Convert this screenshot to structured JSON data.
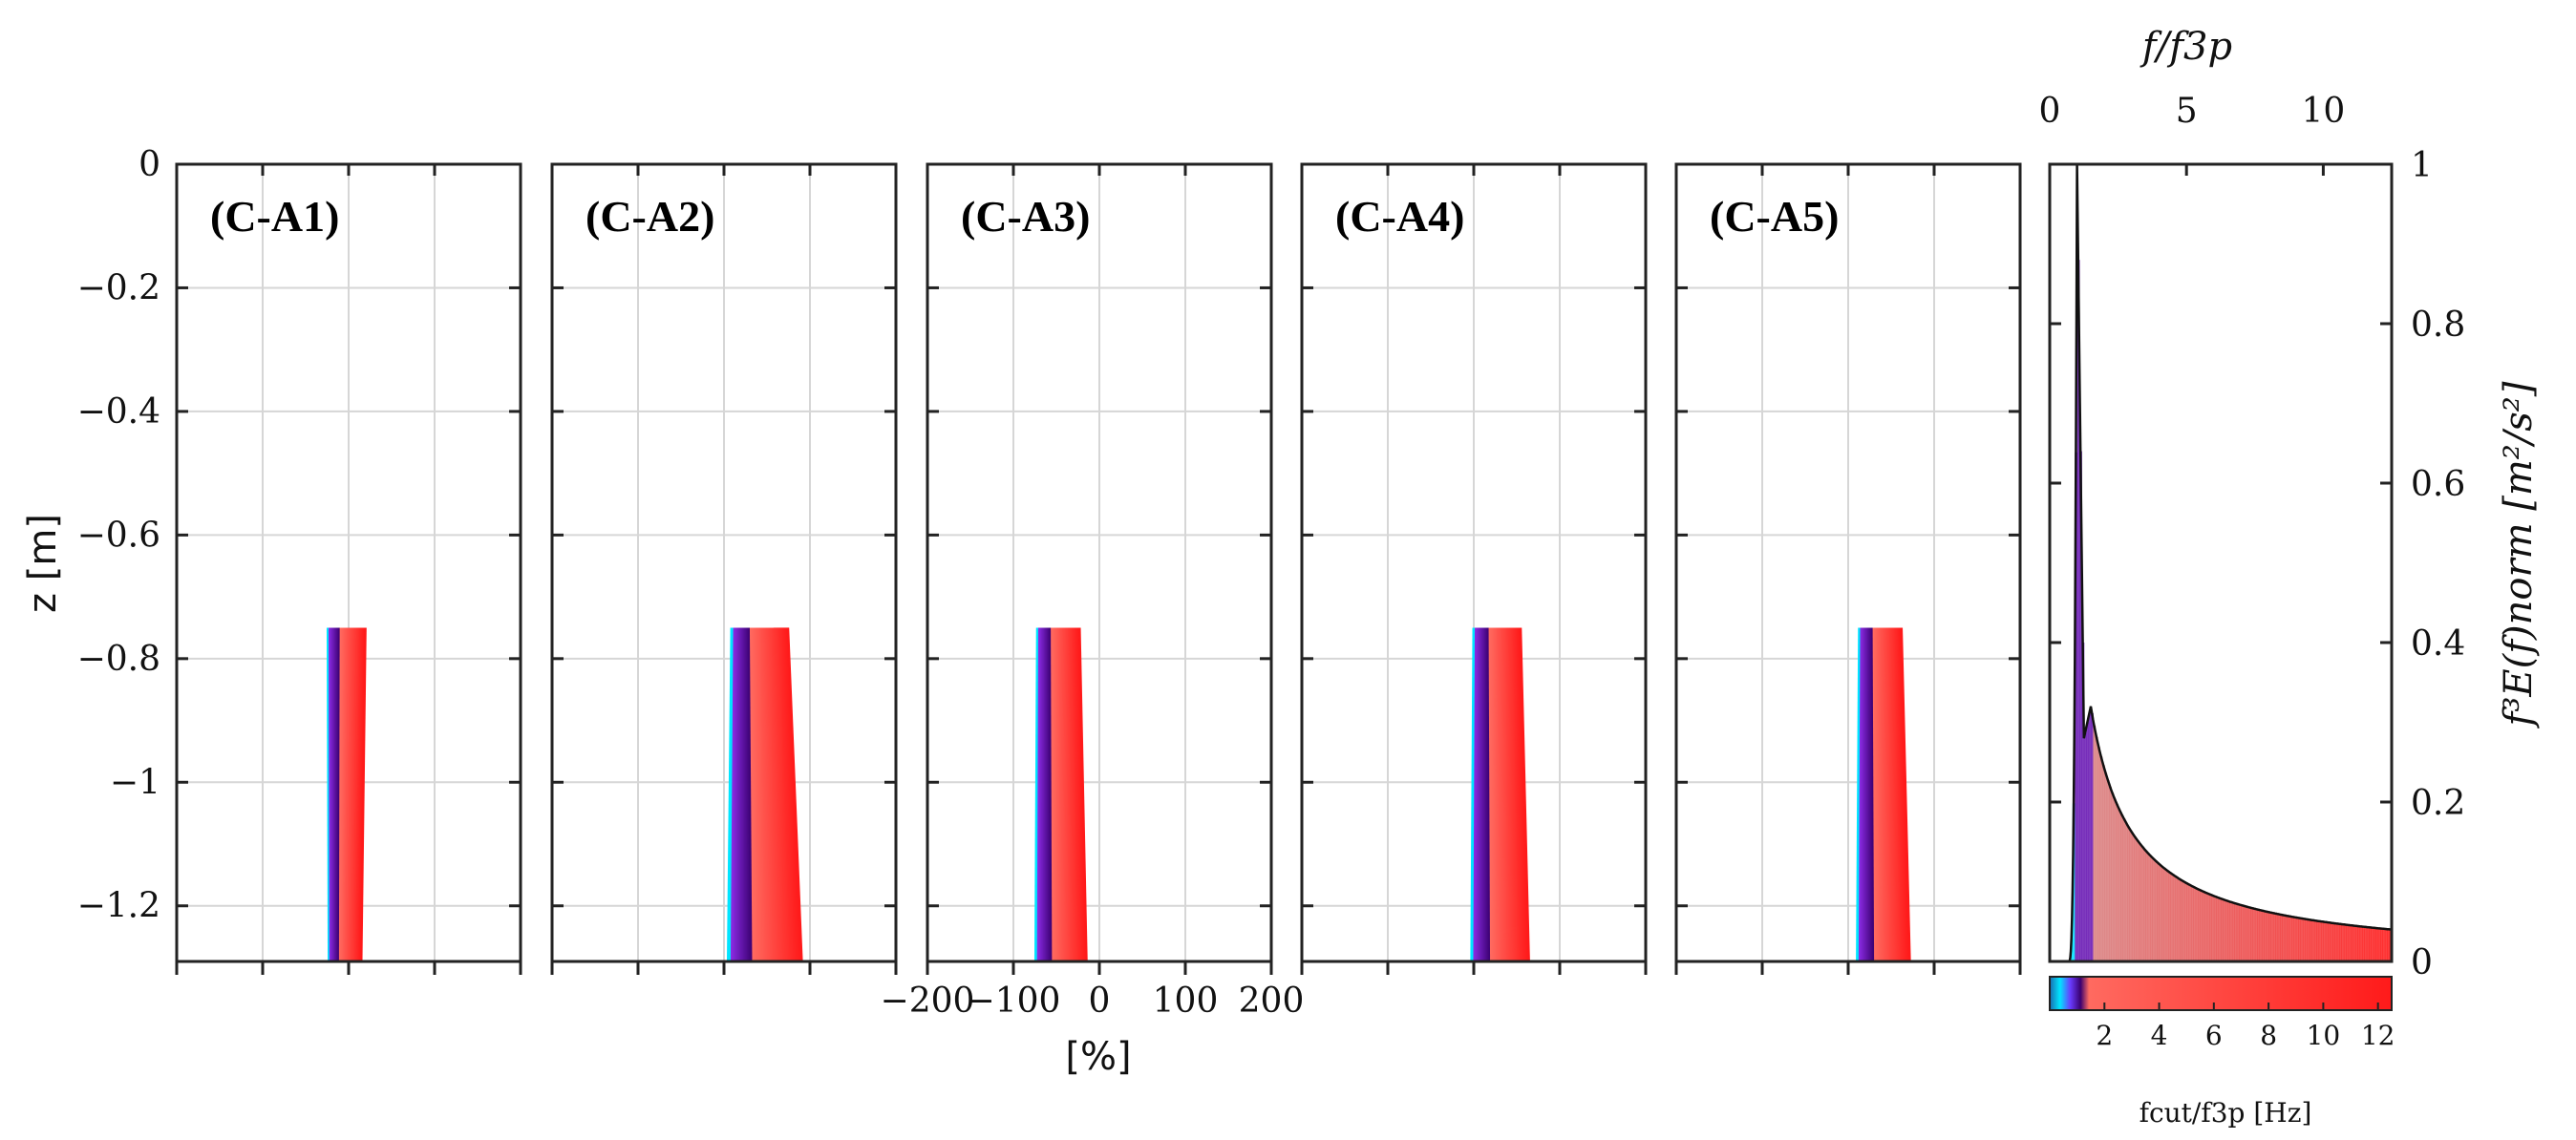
{
  "chart_data": [
    {
      "type": "line",
      "panels": [
        {
          "label": "(C-A1)",
          "center": 0,
          "spread": 0.8,
          "tilt": -0.15
        },
        {
          "label": "(C-A2)",
          "center": 45,
          "spread": 1.2,
          "tilt": 0.5
        },
        {
          "label": "(C-A3)",
          "center": -45,
          "spread": 0.9,
          "tilt": 0.25
        },
        {
          "label": "(C-A4)",
          "center": 30,
          "spread": 1.0,
          "tilt": 0.3
        },
        {
          "label": "(C-A5)",
          "center": 40,
          "spread": 0.9,
          "tilt": 0.3
        }
      ],
      "ylabel": "z [m]",
      "xlabel": "[%]",
      "ylim": [
        -1.29,
        0
      ],
      "xlim": [
        -200,
        200
      ],
      "y_ticks": [
        "0",
        "−0.2",
        "−0.4",
        "−0.6",
        "−0.8",
        "−1",
        "−1.2"
      ],
      "y_tick_values": [
        0,
        -0.2,
        -0.4,
        -0.6,
        -0.8,
        -1,
        -1.2
      ],
      "x_ticks": [
        "−200",
        "−100",
        "0",
        "100",
        "200"
      ],
      "x_tick_values": [
        -200,
        -100,
        0,
        100,
        200
      ],
      "profile_z_range": [
        -0.75,
        -1.29
      ],
      "series_count": 60,
      "grid": true
    },
    {
      "type": "area",
      "x_top_label": "f/f3p",
      "x_top_ticks": [
        "0",
        "5",
        "10"
      ],
      "x_top_tick_values": [
        0,
        5,
        10
      ],
      "xlim": [
        0,
        12.5
      ],
      "ylim": [
        0,
        1
      ],
      "y_ticks": [
        "0",
        "0.2",
        "0.4",
        "0.6",
        "0.8",
        "1"
      ],
      "y_tick_values": [
        0,
        0.2,
        0.4,
        0.6,
        0.8,
        1
      ],
      "ylabel": "f³E(f)norm [m²/s²]",
      "peak": {
        "x": 1.0,
        "y": 1.0
      },
      "shoulder": {
        "x": 1.5,
        "y": 0.32
      },
      "tail_end": {
        "x": 12.5,
        "y": 0.04
      }
    }
  ],
  "colorbar": {
    "ticks": [
      "2",
      "4",
      "6",
      "8",
      "10",
      "12"
    ],
    "tick_values": [
      2,
      4,
      6,
      8,
      10,
      12
    ],
    "label": "fcut/f3p [Hz]",
    "colors": {
      "cyan": "#00e5ff",
      "purple": "#8a2be2",
      "dark_purple": "#3a0070",
      "red": "#ff1a1a",
      "salmon": "#ff6a60"
    }
  }
}
